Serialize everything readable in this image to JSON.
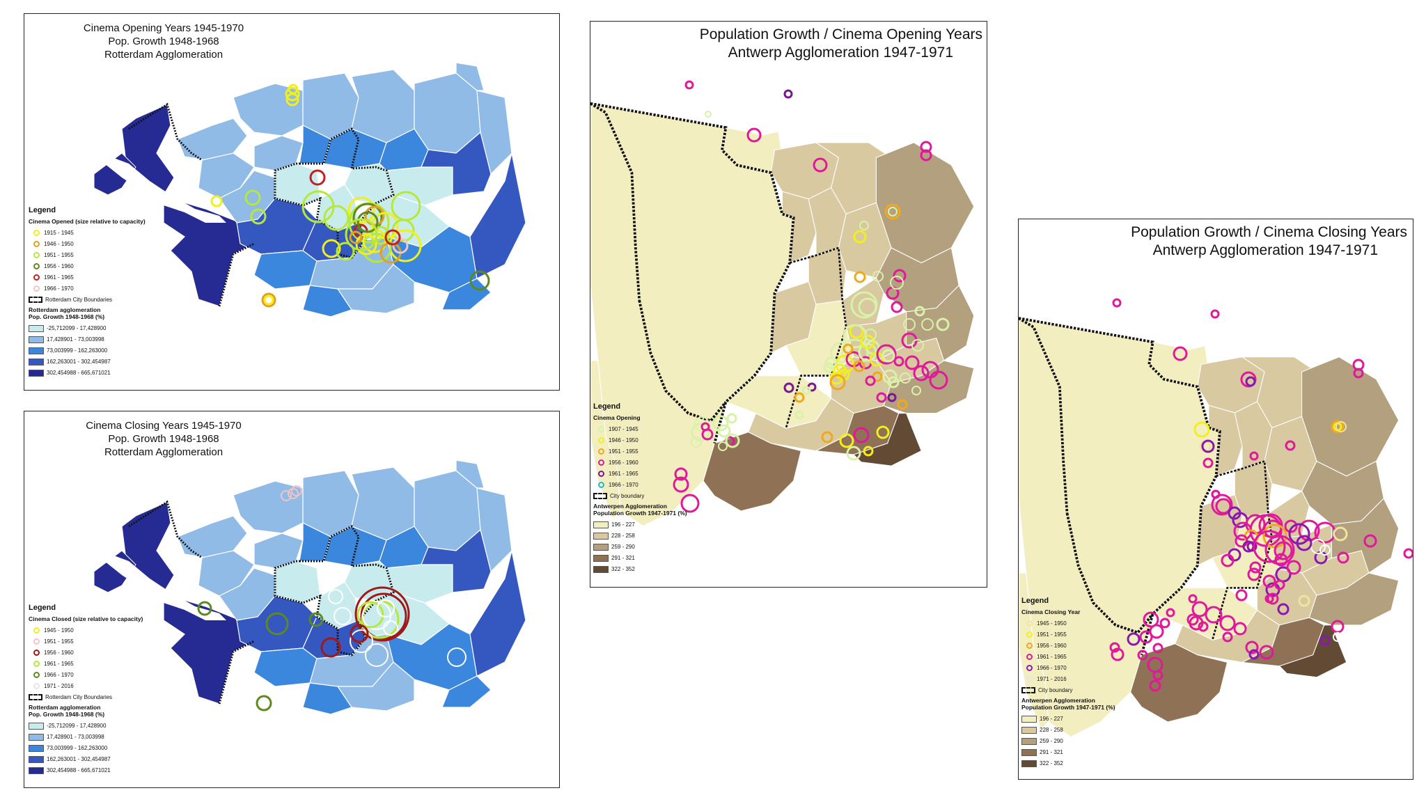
{
  "panels": {
    "rotterdam_opening": {
      "title_lines": [
        "Cinema Opening Years 1945-1970",
        "Pop. Growth 1948-1968",
        "Rotterdam Agglomeration"
      ],
      "legend_heading": "Legend",
      "cinema_heading": "Cinema Opened (size relative to capacity)",
      "cinema_classes": [
        {
          "label": "1915 - 1945",
          "color": "#f2ef1a"
        },
        {
          "label": "1946 - 1950",
          "color": "#e2a020"
        },
        {
          "label": "1951 - 1955",
          "color": "#b6e83a"
        },
        {
          "label": "1956 - 1960",
          "color": "#5c8a1e"
        },
        {
          "label": "1961 - 1965",
          "color": "#c02020"
        },
        {
          "label": "1966 - 1970",
          "color": "#f2c4c4"
        }
      ],
      "boundary_label": "Rotterdam City Boundaries",
      "region_heading": "Rotterdam agglomeration",
      "region_sub": "Pop. Growth 1948-1968 (%)",
      "region_classes": [
        {
          "label": "-25,712099 - 17,428900",
          "color": "#c8ecee"
        },
        {
          "label": "17,428901 - 73,003998",
          "color": "#8fbbe6"
        },
        {
          "label": "73,003999 - 162,263000",
          "color": "#3b87dd"
        },
        {
          "label": "162,263001 - 302,454987",
          "color": "#3457c0"
        },
        {
          "label": "302,454988 - 665,671021",
          "color": "#252b92"
        }
      ]
    },
    "rotterdam_closing": {
      "title_lines": [
        "Cinema Closing Years 1945-1970",
        "Pop. Growth 1948-1968",
        "Rotterdam Agglomeration"
      ],
      "legend_heading": "Legend",
      "cinema_heading": "Cinema Closed (size relative to capacity)",
      "cinema_classes": [
        {
          "label": "1945 - 1950",
          "color": "#f2ef1a"
        },
        {
          "label": "1951 - 1955",
          "color": "#f2c4c4"
        },
        {
          "label": "1956 - 1960",
          "color": "#a01818"
        },
        {
          "label": "1961 - 1965",
          "color": "#b6e83a"
        },
        {
          "label": "1966 - 1970",
          "color": "#5c8a1e"
        },
        {
          "label": "1971 - 2016",
          "color": "#ffffff"
        }
      ],
      "boundary_label": "Rotterdam City Boundaries",
      "region_heading": "Rotterdam agglomeration",
      "region_sub": "Pop. Growth 1948-1968 (%)",
      "region_classes": [
        {
          "label": "-25,712099 - 17,428900",
          "color": "#c8ecee"
        },
        {
          "label": "17,428901 - 73,003998",
          "color": "#8fbbe6"
        },
        {
          "label": "73,003999 - 162,263000",
          "color": "#3b87dd"
        },
        {
          "label": "162,263001 - 302,454987",
          "color": "#3457c0"
        },
        {
          "label": "302,454988 - 665,671021",
          "color": "#252b92"
        }
      ]
    },
    "antwerp_opening": {
      "title_lines": [
        "Population Growth / Cinema Opening Years",
        "Antwerp Agglomeration 1947-1971"
      ],
      "legend_heading": "Legend",
      "cinema_heading": "Cinema Opening",
      "cinema_classes": [
        {
          "label": "1907 - 1945",
          "color": "#d8f2a8"
        },
        {
          "label": "1946 - 1950",
          "color": "#f2ef1a"
        },
        {
          "label": "1951 - 1955",
          "color": "#f0a81c"
        },
        {
          "label": "1956 - 1960",
          "color": "#e0189a"
        },
        {
          "label": "1961 - 1965",
          "color": "#7a1690"
        },
        {
          "label": "1966 - 1970",
          "color": "#20b6d6"
        }
      ],
      "boundary_label": "City boundary",
      "region_heading": "Antwerpen Agglomeration",
      "region_sub": "Population Growth 1947-1971 (%)",
      "region_classes": [
        {
          "label": "196 - 227",
          "color": "#f3eec0"
        },
        {
          "label": "228 - 258",
          "color": "#d8c9a0"
        },
        {
          "label": "259 - 290",
          "color": "#b3a07e"
        },
        {
          "label": "291 - 321",
          "color": "#8f7256"
        },
        {
          "label": "322 - 352",
          "color": "#634a34"
        }
      ]
    },
    "antwerp_closing": {
      "title_lines": [
        "Population Growth / Cinema Closing Years",
        "Antwerp Agglomeration 1947-1971"
      ],
      "legend_heading": "Legend",
      "cinema_heading": "Cinema Closing Year",
      "cinema_classes": [
        {
          "label": "1945 - 1950",
          "color": "#f0e4a0"
        },
        {
          "label": "1951 - 1955",
          "color": "#f2ef1a"
        },
        {
          "label": "1956 - 1960",
          "color": "#f0a81c"
        },
        {
          "label": "1961 - 1965",
          "color": "#e0189a"
        },
        {
          "label": "1966 - 1970",
          "color": "#8a18b0"
        },
        {
          "label": "1971 - 2016",
          "color": "#ffffff"
        }
      ],
      "boundary_label": "City boundary",
      "region_heading": "Antwerpen Agglomeration",
      "region_sub": "Population Growth 1947-1971 (%)",
      "region_classes": [
        {
          "label": "196 - 227",
          "color": "#f3eec0"
        },
        {
          "label": "228 - 258",
          "color": "#d8c9a0"
        },
        {
          "label": "259 - 290",
          "color": "#b3a07e"
        },
        {
          "label": "291 - 321",
          "color": "#8f7256"
        },
        {
          "label": "322 - 352",
          "color": "#634a34"
        }
      ]
    }
  }
}
